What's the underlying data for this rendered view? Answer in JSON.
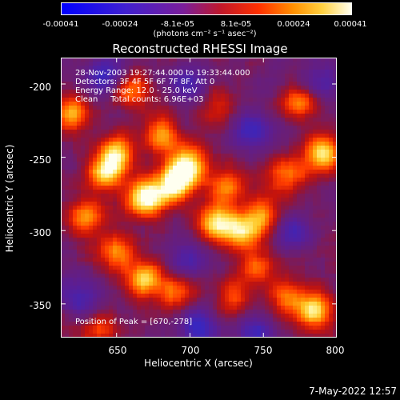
{
  "colorbar": {
    "ticks": [
      "-0.00041",
      "-0.00024",
      "-8.1e-05",
      "8.1e-05",
      "0.00024",
      "0.00041"
    ],
    "unit": "(photons cm⁻² s⁻¹ asec⁻²)",
    "range": [
      -0.00041,
      0.00041
    ]
  },
  "title": "Reconstructed RHESSI Image",
  "info": {
    "line1": "28-Nov-2003 19:27:44.000 to 19:33:44.000",
    "line2": "Detectors: 3F 4F 5F 6F 7F 8F, Att 0",
    "line3": "Energy Range: 12.0 - 25.0 keV",
    "line4": "Clean     Total counts: 6.96E+03"
  },
  "peak_label": "Position of Peak = [670,-278]",
  "timestamp": "7-May-2022 12:57",
  "chart_data": {
    "type": "heatmap",
    "title": "Reconstructed RHESSI Image",
    "xlabel": "Heliocentric X (arcsec)",
    "ylabel": "Heliocentric Y (arcsec)",
    "xlim": [
      612,
      800
    ],
    "ylim": [
      -373,
      -182
    ],
    "x_ticks": [
      "650",
      "700",
      "750",
      "800"
    ],
    "x_tick_values": [
      650,
      700,
      750,
      800
    ],
    "y_ticks": [
      "-200",
      "-250",
      "-300",
      "-350"
    ],
    "y_tick_values": [
      -200,
      -250,
      -300,
      -350
    ],
    "colormap": "blue-purple-red-orange-yellow-white",
    "peak_position": [
      670,
      -278
    ],
    "blobs": [
      {
        "x": 670,
        "y": -278,
        "v": 1.0
      },
      {
        "x": 690,
        "y": -268,
        "v": 0.9
      },
      {
        "x": 700,
        "y": -255,
        "v": 0.85
      },
      {
        "x": 650,
        "y": -248,
        "v": 0.8
      },
      {
        "x": 642,
        "y": -262,
        "v": 0.7
      },
      {
        "x": 680,
        "y": -235,
        "v": 0.65
      },
      {
        "x": 620,
        "y": -220,
        "v": 0.7
      },
      {
        "x": 660,
        "y": -205,
        "v": 0.55
      },
      {
        "x": 630,
        "y": -290,
        "v": 0.6
      },
      {
        "x": 718,
        "y": -295,
        "v": 0.85
      },
      {
        "x": 735,
        "y": -300,
        "v": 0.7
      },
      {
        "x": 750,
        "y": -290,
        "v": 0.6
      },
      {
        "x": 725,
        "y": -270,
        "v": 0.55
      },
      {
        "x": 668,
        "y": -333,
        "v": 0.75
      },
      {
        "x": 650,
        "y": -315,
        "v": 0.55
      },
      {
        "x": 690,
        "y": -342,
        "v": 0.5
      },
      {
        "x": 790,
        "y": -248,
        "v": 0.85
      },
      {
        "x": 775,
        "y": -212,
        "v": 0.55
      },
      {
        "x": 765,
        "y": -262,
        "v": 0.55
      },
      {
        "x": 785,
        "y": -355,
        "v": 0.8
      },
      {
        "x": 765,
        "y": -345,
        "v": 0.55
      },
      {
        "x": 730,
        "y": -345,
        "v": 0.45
      },
      {
        "x": 745,
        "y": -325,
        "v": 0.5
      },
      {
        "x": 638,
        "y": -368,
        "v": 0.4
      },
      {
        "x": 720,
        "y": -215,
        "v": 0.3
      }
    ],
    "holes": [
      {
        "x": 640,
        "y": -195,
        "v": -0.55
      },
      {
        "x": 700,
        "y": -200,
        "v": -0.45
      },
      {
        "x": 742,
        "y": -232,
        "v": -0.5
      },
      {
        "x": 770,
        "y": -300,
        "v": -0.45
      },
      {
        "x": 700,
        "y": -320,
        "v": -0.4
      },
      {
        "x": 625,
        "y": -345,
        "v": -0.45
      },
      {
        "x": 705,
        "y": -365,
        "v": -0.5
      },
      {
        "x": 745,
        "y": -370,
        "v": -0.45
      },
      {
        "x": 790,
        "y": -200,
        "v": -0.4
      }
    ]
  }
}
